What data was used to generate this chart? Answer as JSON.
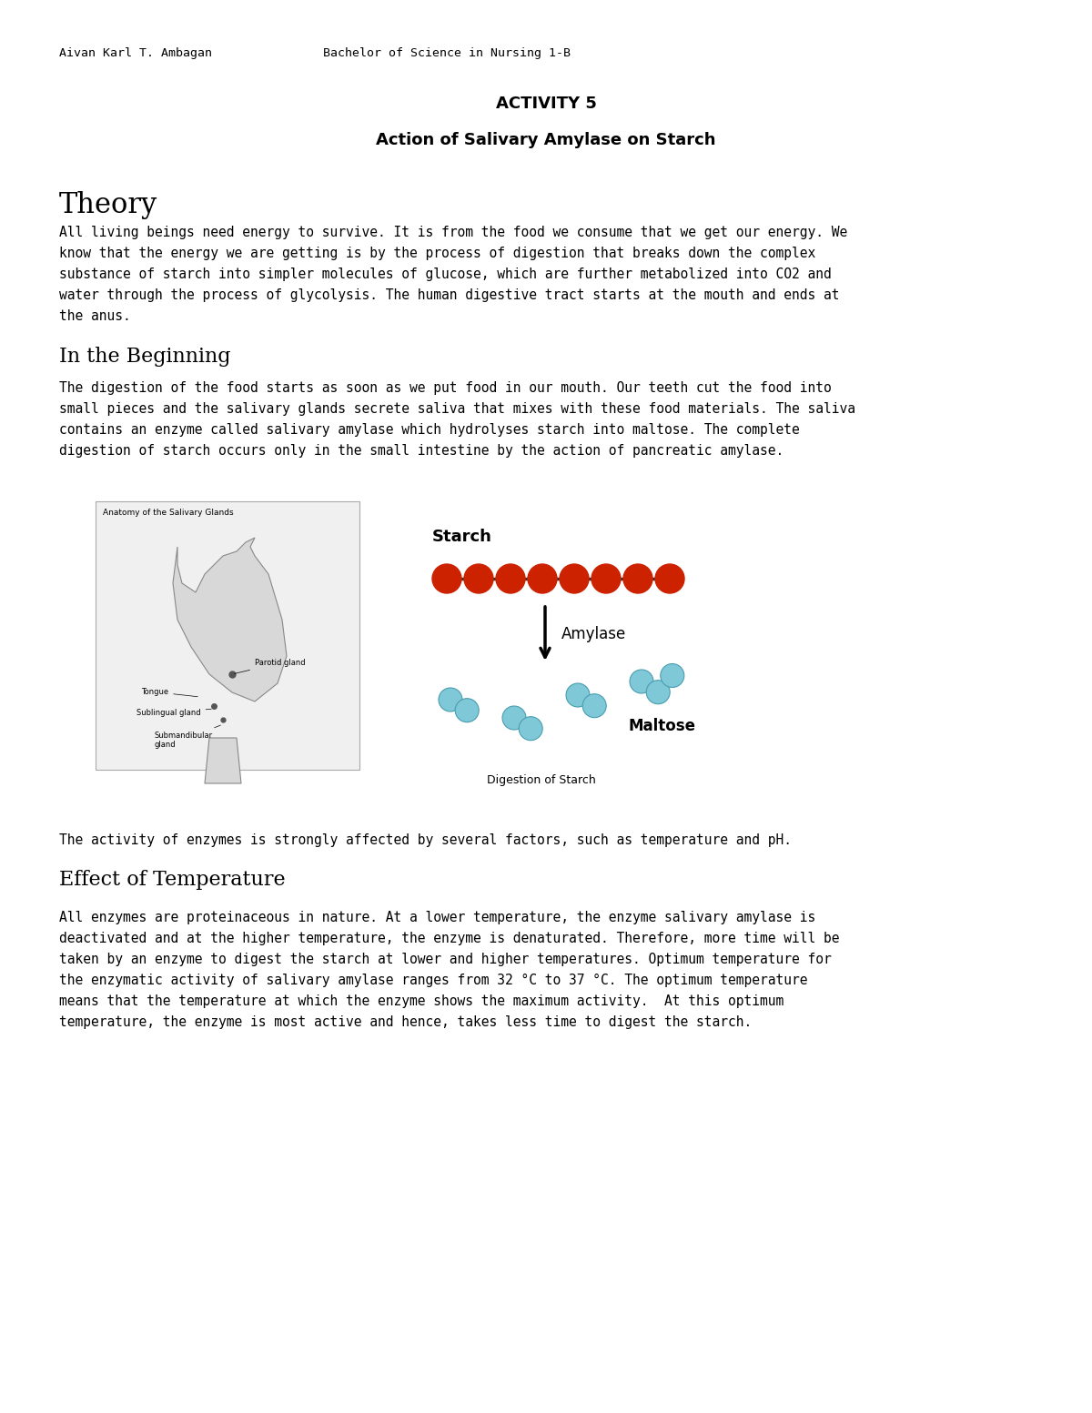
{
  "bg_color": "#ffffff",
  "header_left": "Aivan Karl T. Ambagan",
  "header_right": "Bachelor of Science in Nursing 1-B",
  "title": "ACTIVITY 5",
  "subtitle": "Action of Salivary Amylase on Starch",
  "section1_heading": "Theory",
  "section1_body_lines": [
    "All living beings need energy to survive. It is from the food we consume that we get our energy. We",
    "know that the energy we are getting is by the process of digestion that breaks down the complex",
    "substance of starch into simpler molecules of glucose, which are further metabolized into CO2 and",
    "water through the process of glycolysis. The human digestive tract starts at the mouth and ends at",
    "the anus."
  ],
  "section2_heading": "In the Beginning",
  "section2_body_lines": [
    "The digestion of the food starts as soon as we put food in our mouth. Our teeth cut the food into",
    "small pieces and the salivary glands secrete saliva that mixes with these food materials. The saliva",
    "contains an enzyme called salivary amylase which hydrolyses starch into maltose. The complete",
    "digestion of starch occurs only in the small intestine by the action of pancreatic amylase."
  ],
  "transition_text": "The activity of enzymes is strongly affected by several factors, such as temperature and pH.",
  "section3_heading": "Effect of Temperature",
  "section3_body_lines": [
    "All enzymes are proteinaceous in nature. At a lower temperature, the enzyme salivary amylase is",
    "deactivated and at the higher temperature, the enzyme is denaturated. Therefore, more time will be",
    "taken by an enzyme to digest the starch at lower and higher temperatures. Optimum temperature for",
    "the enzymatic activity of salivary amylase ranges from 32 °C to 37 °C. The optimum temperature",
    "means that the temperature at which the enzyme shows the maximum activity.  At this optimum",
    "temperature, the enzyme is most active and hence, takes less time to digest the starch."
  ],
  "starch_label": "Starch",
  "amylase_label": "Amylase",
  "maltose_label": "Maltose",
  "digestion_label": "Digestion of Starch",
  "anatomy_label": "Anatomy of the Salivary Glands",
  "tongue_label": "Tongue",
  "parotid_label": "Parotid gland",
  "sublingual_label": "Sublingual gland",
  "submandibular_label": "Submandibular\ngland",
  "red_color": "#cc2200",
  "blue_color": "#7ec8d8",
  "blue_edge": "#4a9db0"
}
